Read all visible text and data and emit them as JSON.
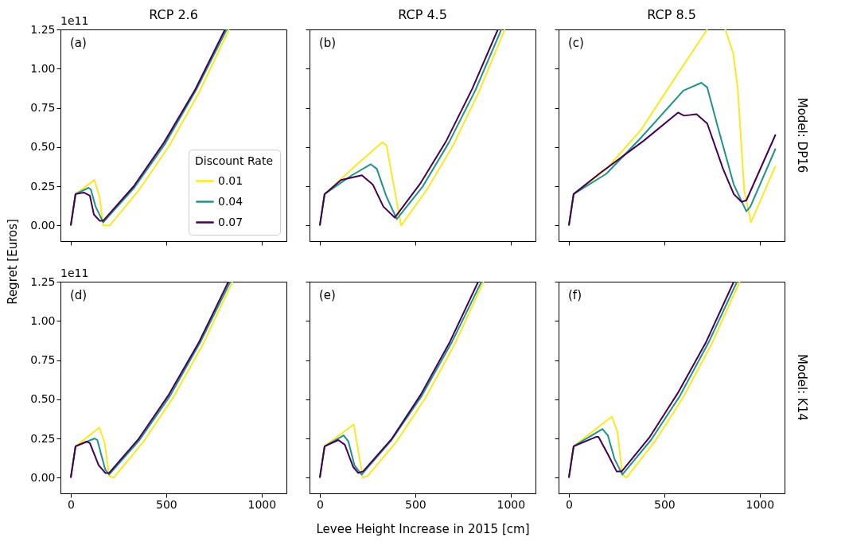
{
  "chart_data": [
    {
      "type": "line",
      "title": "RCP 2.6",
      "annotations": [
        "(a)",
        "1e11"
      ],
      "legend": "bottom right",
      "legend_title": "Discount Rate",
      "tick_labels": "y",
      "grid": false,
      "line_style": "solid",
      "marker": "none",
      "xlim": [
        -54,
        1130
      ],
      "ylim": [
        -0.1,
        1.25
      ],
      "xticks": [
        0,
        500,
        1000
      ],
      "yticks": [
        {
          "value": 0,
          "label": "0.00"
        },
        {
          "value": 0.25,
          "label": "0.25"
        },
        {
          "value": 0.5,
          "label": "0.50"
        },
        {
          "value": 0.75,
          "label": "0.75"
        },
        {
          "value": 1,
          "label": "1.00"
        },
        {
          "value": 1.25,
          "label": "1.25"
        }
      ],
      "series": [
        {
          "name": "0.01",
          "color": "#fde725",
          "x": [
            0,
            25,
            124,
            151,
            170,
            204,
            360,
            517,
            673,
            829
          ],
          "values": [
            0,
            0.2,
            0.29,
            0.18,
            0,
            0,
            0.23,
            0.51,
            0.85,
            1.25
          ]
        },
        {
          "name": "0.04",
          "color": "#21918c",
          "x": [
            0,
            25,
            93,
            105,
            130,
            170,
            332,
            494,
            655,
            817
          ],
          "values": [
            0,
            0.2,
            0.24,
            0.23,
            0.12,
            0.02,
            0.24,
            0.52,
            0.86,
            1.25
          ]
        },
        {
          "name": "0.07",
          "color": "#440154",
          "x": [
            0,
            25,
            68,
            100,
            121,
            151,
            170,
            330,
            489,
            649,
            808
          ],
          "values": [
            0,
            0.2,
            0.21,
            0.19,
            0.07,
            0.03,
            0.03,
            0.25,
            0.53,
            0.86,
            1.25
          ]
        }
      ]
    },
    {
      "type": "line",
      "title": "RCP 4.5",
      "annotations": [
        "(b)"
      ],
      "tick_labels": false,
      "grid": false,
      "line_style": "solid",
      "marker": "none",
      "xlim": [
        -54,
        1130
      ],
      "ylim": [
        -0.1,
        1.25
      ],
      "xticks": [
        0,
        500,
        1000
      ],
      "yticks": [
        0,
        0.25,
        0.5,
        0.75,
        1,
        1.25
      ],
      "series": [
        {
          "color": "#fde725",
          "x": [
            0,
            25,
            168,
            327,
            350,
            376,
            426,
            562,
            698,
            833,
            969
          ],
          "values": [
            0,
            0.2,
            0.36,
            0.53,
            0.51,
            0.33,
            0,
            0.23,
            0.51,
            0.85,
            1.25
          ]
        },
        {
          "color": "#21918c",
          "x": [
            0,
            25,
            168,
            267,
            299,
            347,
            403,
            540,
            677,
            814,
            951
          ],
          "values": [
            0,
            0.2,
            0.32,
            0.39,
            0.36,
            0.19,
            0.04,
            0.25,
            0.53,
            0.86,
            1.25
          ]
        },
        {
          "color": "#440154",
          "x": [
            0,
            25,
            111,
            220,
            278,
            333,
            393,
            528,
            663,
            798,
            933
          ],
          "values": [
            0,
            0.2,
            0.29,
            0.32,
            0.26,
            0.12,
            0.05,
            0.27,
            0.54,
            0.87,
            1.25
          ]
        }
      ]
    },
    {
      "type": "line",
      "title": "RCP 8.5",
      "annotations": [
        "(c)"
      ],
      "y2label": "Model: DP16",
      "tick_labels": false,
      "grid": false,
      "line_style": "solid",
      "marker": "none",
      "xlim": [
        -54,
        1130
      ],
      "ylim": [
        -0.1,
        1.25
      ],
      "xticks": [
        0,
        500,
        1000
      ],
      "yticks": [
        0,
        0.25,
        0.5,
        0.75,
        1,
        1.25
      ],
      "series": [
        {
          "color": "#fde725",
          "x": [
            0,
            25,
            197,
            378,
            572,
            725,
            770,
            819,
            861,
            885,
            919,
            954,
            1083
          ],
          "values": [
            0,
            0.2,
            0.36,
            0.61,
            0.97,
            1.25,
            null,
            1.25,
            1.1,
            0.87,
            0.22,
            0.02,
            0.38
          ]
        },
        {
          "color": "#21918c",
          "x": [
            0,
            25,
            197,
            378,
            600,
            694,
            725,
            780,
            864,
            930,
            951,
            1083
          ],
          "values": [
            0,
            0.2,
            0.33,
            0.56,
            0.86,
            0.91,
            0.88,
            0.63,
            0.26,
            0.09,
            0.12,
            0.49
          ]
        },
        {
          "color": "#440154",
          "x": [
            0,
            25,
            170,
            392,
            572,
            603,
            669,
            725,
            808,
            864,
            905,
            930,
            1083
          ],
          "values": [
            0,
            0.2,
            0.34,
            0.54,
            0.72,
            0.7,
            0.71,
            0.65,
            0.36,
            0.2,
            0.15,
            0.16,
            0.58
          ]
        }
      ]
    },
    {
      "type": "line",
      "annotations": [
        "(d)",
        "1e11"
      ],
      "ylabel": "Regret [Euros]",
      "grid": false,
      "line_style": "solid",
      "marker": "none",
      "xlim": [
        -54,
        1130
      ],
      "ylim": [
        -0.1,
        1.25
      ],
      "xticks": [
        0,
        500,
        1000
      ],
      "yticks": [
        {
          "value": 0,
          "label": "0.00"
        },
        {
          "value": 0.25,
          "label": "0.25"
        },
        {
          "value": 0.5,
          "label": "0.50"
        },
        {
          "value": 0.75,
          "label": "0.75"
        },
        {
          "value": 1,
          "label": "1.00"
        },
        {
          "value": 1.25,
          "label": "1.25"
        }
      ],
      "series": [
        {
          "color": "#fde725",
          "x": [
            0,
            25,
            150,
            178,
            201,
            225,
            381,
            536,
            692,
            847
          ],
          "values": [
            0,
            0.2,
            0.32,
            0.22,
            0.01,
            0,
            0.23,
            0.51,
            0.85,
            1.25
          ]
        },
        {
          "color": "#21918c",
          "x": [
            0,
            25,
            125,
            139,
            181,
            201,
            360,
            519,
            677,
            836
          ],
          "values": [
            0,
            0.2,
            0.25,
            0.24,
            0.05,
            0.02,
            0.24,
            0.52,
            0.86,
            1.25
          ]
        },
        {
          "color": "#440154",
          "x": [
            0,
            25,
            83,
            100,
            146,
            181,
            201,
            357,
            514,
            670,
            826
          ],
          "values": [
            0,
            0.2,
            0.23,
            0.22,
            0.08,
            0.03,
            0.03,
            0.25,
            0.53,
            0.86,
            1.25
          ]
        }
      ]
    },
    {
      "type": "line",
      "annotations": [
        "(e)"
      ],
      "xlabel": "Levee Height Increase in 2015 [cm]",
      "tick_labels": "x",
      "grid": false,
      "line_style": "solid",
      "marker": "none",
      "xlim": [
        -54,
        1130
      ],
      "ylim": [
        -0.1,
        1.25
      ],
      "xticks": [
        0,
        500,
        1000
      ],
      "yticks": [
        0,
        0.25,
        0.5,
        0.75,
        1,
        1.25
      ],
      "series": [
        {
          "color": "#fde725",
          "x": [
            0,
            25,
            178,
            225,
            250,
            402,
            554,
            706,
            858
          ],
          "values": [
            0,
            0.2,
            0.34,
            0,
            0.01,
            0.23,
            0.51,
            0.85,
            1.25
          ]
        },
        {
          "color": "#21918c",
          "x": [
            0,
            25,
            125,
            150,
            181,
            219,
            376,
            533,
            690,
            847
          ],
          "values": [
            0,
            0.2,
            0.27,
            0.23,
            0.08,
            0.02,
            0.24,
            0.52,
            0.86,
            1.25
          ]
        },
        {
          "color": "#440154",
          "x": [
            0,
            25,
            97,
            131,
            174,
            201,
            227,
            378,
            529,
            679,
            830
          ],
          "values": [
            0,
            0.2,
            0.24,
            0.21,
            0.07,
            0.03,
            0.04,
            0.25,
            0.53,
            0.86,
            1.25
          ]
        }
      ]
    },
    {
      "type": "line",
      "annotations": [
        "(f)"
      ],
      "y2label": "Model: K14",
      "tick_labels": "x",
      "grid": false,
      "line_style": "solid",
      "marker": "none",
      "xlim": [
        -54,
        1130
      ],
      "ylim": [
        -0.1,
        1.25
      ],
      "xticks": [
        0,
        500,
        1000
      ],
      "yticks": [
        0,
        0.25,
        0.5,
        0.75,
        1,
        1.25
      ],
      "series": [
        {
          "color": "#fde725",
          "x": [
            0,
            25,
            225,
            255,
            280,
            301,
            450,
            598,
            747,
            895
          ],
          "values": [
            0,
            0.2,
            0.39,
            0.29,
            0.02,
            0,
            0.23,
            0.51,
            0.85,
            1.25
          ]
        },
        {
          "color": "#21918c",
          "x": [
            0,
            25,
            176,
            204,
            239,
            280,
            430,
            581,
            731,
            881
          ],
          "values": [
            0,
            0.2,
            0.31,
            0.27,
            0.12,
            0.02,
            0.24,
            0.52,
            0.86,
            1.25
          ]
        },
        {
          "color": "#440154",
          "x": [
            0,
            25,
            142,
            155,
            204,
            250,
            277,
            424,
            571,
            717,
            864
          ],
          "values": [
            0,
            0.2,
            0.26,
            0.26,
            0.15,
            0.04,
            0.04,
            0.26,
            0.54,
            0.86,
            1.25
          ]
        }
      ]
    }
  ]
}
